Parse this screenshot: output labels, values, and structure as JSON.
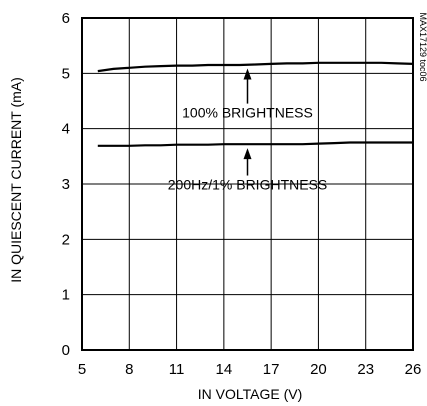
{
  "chart_data": {
    "type": "line",
    "xlabel": "IN VOLTAGE (V)",
    "ylabel": "IN QUIESCENT CURRENT (mA)",
    "xlim": [
      5,
      26
    ],
    "ylim": [
      0,
      6
    ],
    "x_ticks": [
      "5",
      "8",
      "11",
      "14",
      "17",
      "20",
      "23",
      "26"
    ],
    "y_ticks": [
      "0",
      "1",
      "2",
      "3",
      "4",
      "5",
      "6"
    ],
    "grid": true,
    "series": [
      {
        "label": "100% BRIGHTNESS",
        "color": "#000000",
        "x": [
          6,
          7,
          8,
          9,
          10,
          11,
          12,
          13,
          14,
          15,
          16,
          17,
          18,
          19,
          20,
          21,
          22,
          23,
          24,
          25,
          26
        ],
        "y": [
          5.04,
          5.08,
          5.1,
          5.12,
          5.13,
          5.14,
          5.14,
          5.15,
          5.15,
          5.15,
          5.16,
          5.17,
          5.18,
          5.18,
          5.19,
          5.19,
          5.19,
          5.19,
          5.19,
          5.18,
          5.17
        ]
      },
      {
        "label": "200Hz/1% BRIGHTNESS",
        "color": "#000000",
        "x": [
          6,
          7,
          8,
          9,
          10,
          11,
          12,
          13,
          14,
          15,
          16,
          17,
          18,
          19,
          20,
          21,
          22,
          23,
          24,
          25,
          26
        ],
        "y": [
          3.69,
          3.69,
          3.69,
          3.7,
          3.7,
          3.71,
          3.71,
          3.71,
          3.72,
          3.72,
          3.72,
          3.72,
          3.72,
          3.72,
          3.73,
          3.74,
          3.75,
          3.75,
          3.75,
          3.75,
          3.75
        ]
      }
    ],
    "annotations": [
      {
        "text": "100% BRIGHTNESS",
        "x": 15.5,
        "y": 4.2,
        "arrow_to": [
          15.5,
          5.16
        ]
      },
      {
        "text": "200Hz/1% BRIGHTNESS",
        "x": 15.5,
        "y": 2.9,
        "arrow_to": [
          15.5,
          3.72
        ]
      }
    ],
    "figure_id": "MAX17129 toc06"
  }
}
